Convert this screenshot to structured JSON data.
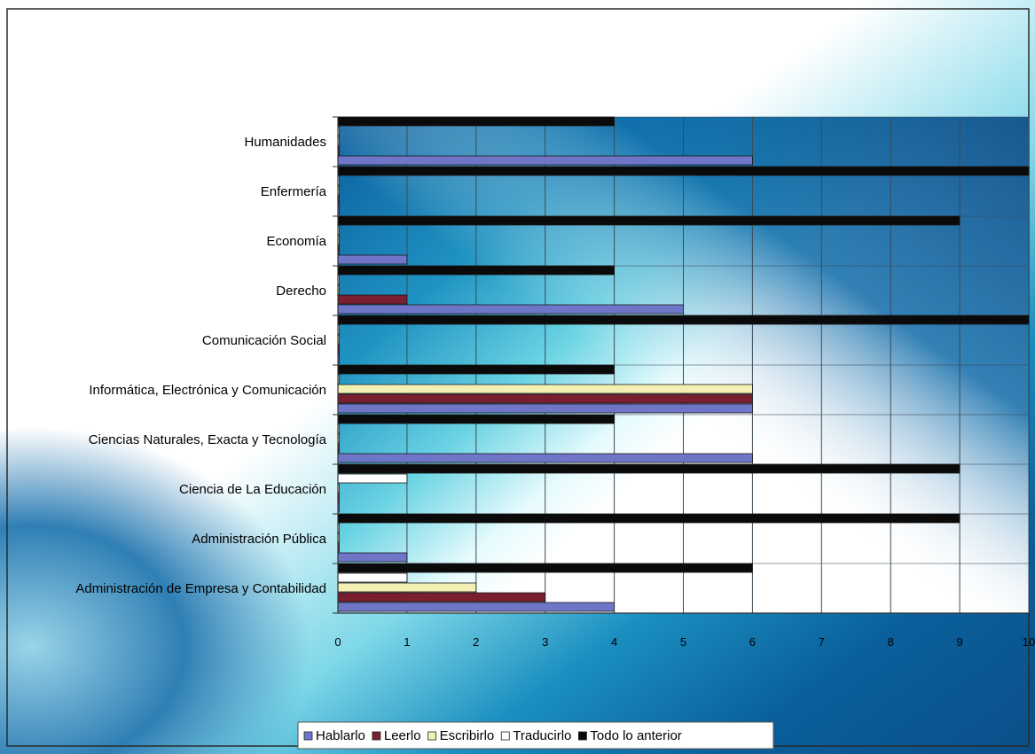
{
  "chart_data": {
    "type": "bar",
    "orientation": "horizontal",
    "categories": [
      "Humanidades",
      "Enfermería",
      "Economía",
      "Derecho",
      "Comunicación Social",
      "Informática, Electrónica y Comunicación",
      "Ciencias Naturales, Exacta y Tecnología",
      "Ciencia de La Educación",
      "Administración Pública",
      "Administración de Empresa y Contabilidad"
    ],
    "series": [
      {
        "name": "Hablarlo",
        "color": "#6f76c8",
        "values": [
          6,
          0,
          1,
          5,
          0,
          6,
          6,
          0,
          1,
          4
        ]
      },
      {
        "name": "Leerlo",
        "color": "#7a1f2f",
        "values": [
          0,
          0,
          0,
          1,
          0,
          6,
          0,
          0,
          0,
          3
        ]
      },
      {
        "name": "Escribirlo",
        "color": "#f4f0b4",
        "values": [
          0,
          0,
          0,
          0,
          0,
          6,
          0,
          0,
          0,
          2
        ]
      },
      {
        "name": "Traducirlo",
        "color": "#ffffff",
        "values": [
          0,
          0,
          0,
          0,
          0,
          0,
          0,
          1,
          0,
          1
        ]
      },
      {
        "name": "Todo lo anterior",
        "color": "#0a0a0a",
        "values": [
          4,
          10,
          9,
          4,
          10,
          4,
          4,
          9,
          9,
          6
        ]
      }
    ],
    "xlim": [
      0,
      10
    ],
    "xticks": [
      "0",
      "1",
      "2",
      "3",
      "4",
      "5",
      "6",
      "7",
      "8",
      "9",
      "10"
    ],
    "grid": true,
    "legend_position": "bottom"
  }
}
